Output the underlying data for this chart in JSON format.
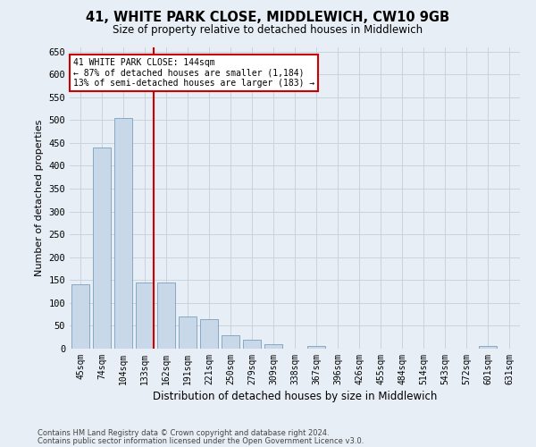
{
  "title": "41, WHITE PARK CLOSE, MIDDLEWICH, CW10 9GB",
  "subtitle": "Size of property relative to detached houses in Middlewich",
  "xlabel": "Distribution of detached houses by size in Middlewich",
  "ylabel": "Number of detached properties",
  "footer1": "Contains HM Land Registry data © Crown copyright and database right 2024.",
  "footer2": "Contains public sector information licensed under the Open Government Licence v3.0.",
  "bar_color": "#c8d8e8",
  "bar_edge_color": "#7aa0be",
  "grid_color": "#c8d4e0",
  "vline_color": "#cc0000",
  "vline_x_bin": 3,
  "annotation_text_line1": "41 WHITE PARK CLOSE: 144sqm",
  "annotation_text_line2": "← 87% of detached houses are smaller (1,184)",
  "annotation_text_line3": "13% of semi-detached houses are larger (183) →",
  "categories": [
    "45sqm",
    "74sqm",
    "104sqm",
    "133sqm",
    "162sqm",
    "191sqm",
    "221sqm",
    "250sqm",
    "279sqm",
    "309sqm",
    "338sqm",
    "367sqm",
    "396sqm",
    "426sqm",
    "455sqm",
    "484sqm",
    "514sqm",
    "543sqm",
    "572sqm",
    "601sqm",
    "631sqm"
  ],
  "values": [
    140,
    440,
    505,
    145,
    145,
    70,
    65,
    30,
    20,
    10,
    0,
    5,
    0,
    0,
    0,
    0,
    0,
    0,
    0,
    5,
    0
  ],
  "ylim": [
    0,
    660
  ],
  "yticks": [
    0,
    50,
    100,
    150,
    200,
    250,
    300,
    350,
    400,
    450,
    500,
    550,
    600,
    650
  ],
  "background_color": "#e8eef5",
  "plot_bg_color": "#e8eef5",
  "fig_width": 6.0,
  "fig_height": 5.0,
  "dpi": 100
}
